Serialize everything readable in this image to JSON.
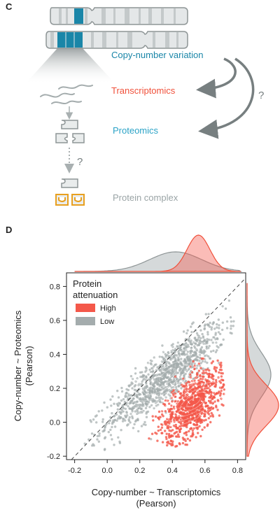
{
  "panel_c": {
    "label": "C",
    "stages": [
      {
        "text": "Copy-number variation",
        "color": "#1a86a8"
      },
      {
        "text": "Transcriptomics",
        "color": "#f0503a"
      },
      {
        "text": "Proteomics",
        "color": "#2ba3c7"
      },
      {
        "text": "Protein complex",
        "color": "#9aa4a6"
      }
    ],
    "question_mark": "?"
  },
  "panel_d": {
    "label": "D",
    "chart_data": {
      "type": "scatter",
      "xlabel_line1": "Copy-number ~ Transcriptomics",
      "xlabel_line2": "(Pearson)",
      "ylabel_line1": "Copy-number ~ Proteomics",
      "ylabel_line2": "(Pearson)",
      "xlim": [
        -0.25,
        0.85
      ],
      "ylim": [
        -0.22,
        0.88
      ],
      "xticks": [
        "-0.2",
        "0.0",
        "0.2",
        "0.4",
        "0.6",
        "0.8"
      ],
      "yticks": [
        "-0.2",
        "0.0",
        "0.2",
        "0.4",
        "0.6",
        "0.8"
      ],
      "legend": {
        "title_line1": "Protein",
        "title_line2": "attenuation",
        "placement": "top-left"
      },
      "series": [
        {
          "name": "High",
          "color": "#f4584a",
          "center": [
            0.52,
            0.1
          ],
          "spread": [
            0.13,
            0.11
          ]
        },
        {
          "name": "Low",
          "color": "#a4acad",
          "center": [
            0.36,
            0.27
          ],
          "spread": [
            0.18,
            0.12
          ]
        }
      ],
      "diagonal": "y = x dashed",
      "marginal_densities": "top (x) and right (y)"
    }
  }
}
